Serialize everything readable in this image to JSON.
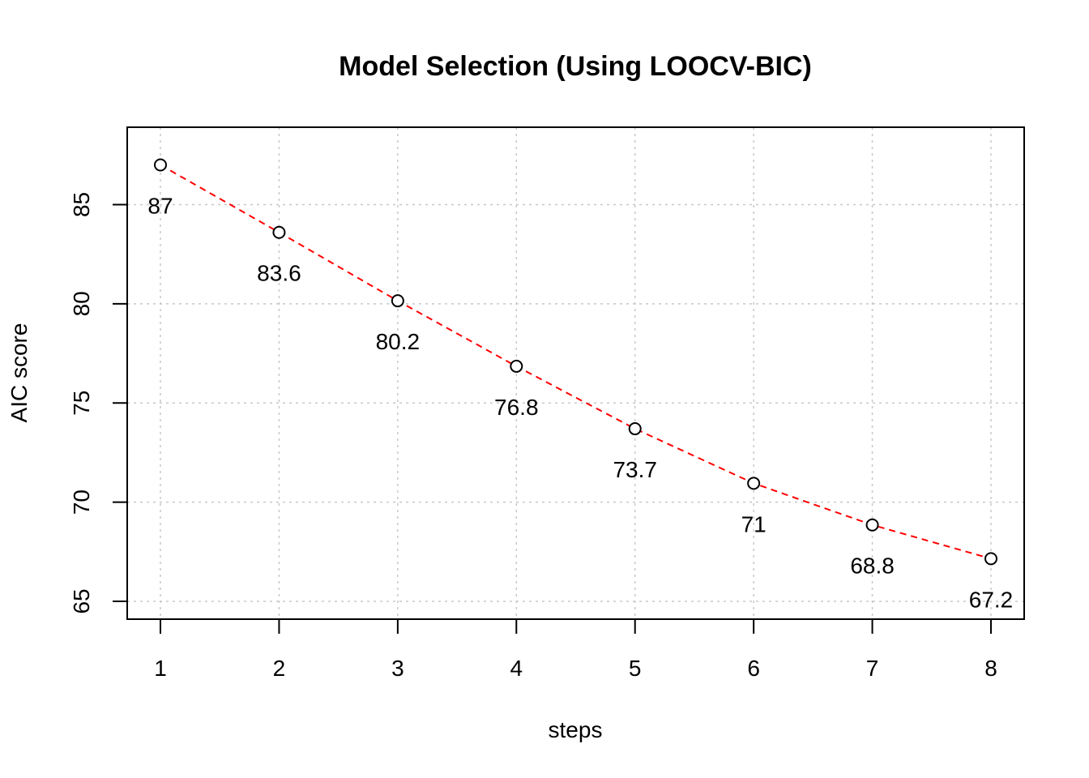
{
  "chart_data": {
    "type": "line",
    "title": "Model Selection (Using LOOCV-BIC)",
    "xlabel": "steps",
    "ylabel": "AIC score",
    "x": [
      1,
      2,
      3,
      4,
      5,
      6,
      7,
      8
    ],
    "values": [
      87.0,
      83.6,
      80.15,
      76.85,
      73.7,
      70.95,
      68.85,
      67.15
    ],
    "data_labels": [
      "87",
      "83.6",
      "80.2",
      "76.8",
      "73.7",
      "71",
      "68.8",
      "67.2"
    ],
    "x_ticks": [
      "1",
      "2",
      "3",
      "4",
      "5",
      "6",
      "7",
      "8"
    ],
    "y_ticks": [
      "65",
      "70",
      "75",
      "80",
      "85"
    ],
    "xlim": [
      0.72,
      8.28
    ],
    "ylim": [
      64.1,
      88.9
    ],
    "grid": true,
    "line_color": "#ff0000",
    "line_style": "dashed",
    "marker": "open-circle",
    "grid_color": "#c8c8c8"
  }
}
